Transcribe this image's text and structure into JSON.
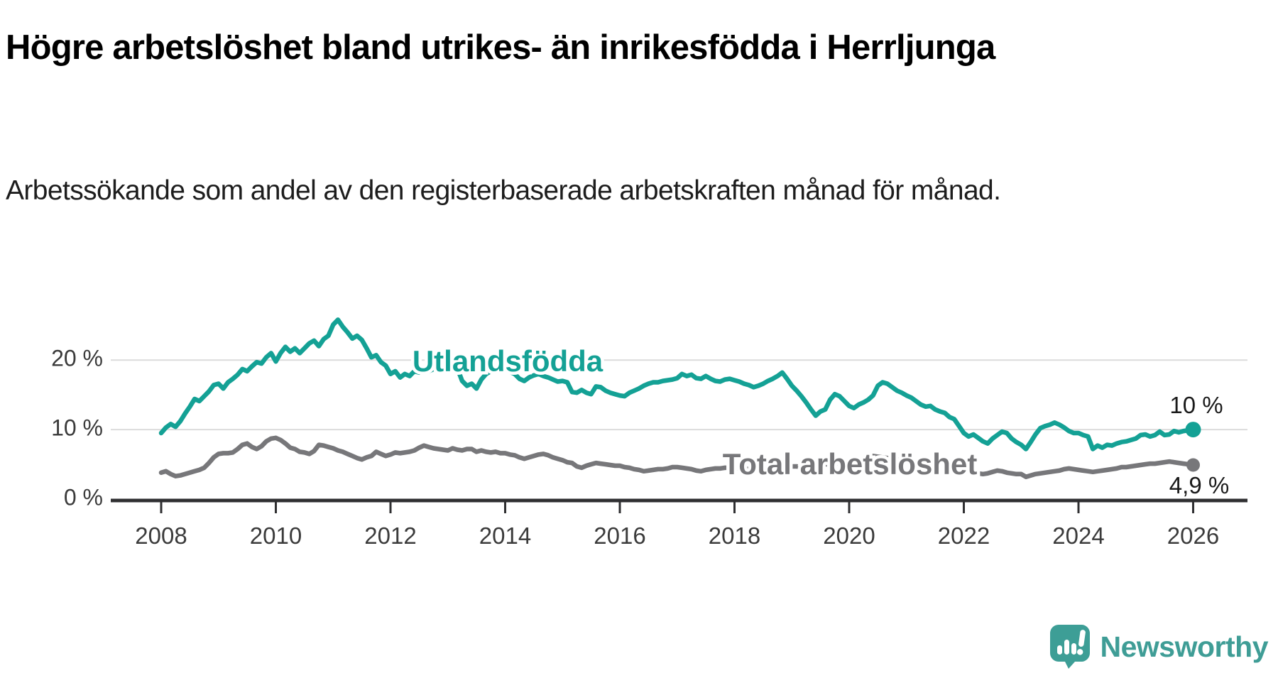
{
  "title": "Högre arbetslöshet bland utrikes- än inrikesfödda i Herrljunga",
  "subtitle": "Arbetssökande som andel av den registerbaserade arbetskraften månad för månad.",
  "branding": {
    "logo_text": "Newsworthy",
    "logo_color": "#3f9d96",
    "icon_color": "#3d9e96"
  },
  "colors": {
    "foreign_born_line": "#14a195",
    "total_line": "#77777a",
    "grid": "#dcdcdc",
    "axis": "#2f2f31",
    "tick_label": "#3b3b3b",
    "annotation_text": "#1a1a1a"
  },
  "chart_data": {
    "type": "line",
    "title": "",
    "xlabel": "",
    "ylabel": "",
    "x_unit": "month",
    "x_range_decimal_years": [
      2008.0,
      2026.083
    ],
    "ylim": [
      0,
      26.5
    ],
    "grid": "horizontal",
    "y_ticks": [
      {
        "value": 0,
        "label": "0 %"
      },
      {
        "value": 10,
        "label": "10 %"
      },
      {
        "value": 20,
        "label": "20 %"
      }
    ],
    "x_ticks": [
      {
        "year": 2008,
        "label": "2008"
      },
      {
        "year": 2010,
        "label": "2010"
      },
      {
        "year": 2012,
        "label": "2012"
      },
      {
        "year": 2014,
        "label": "2014"
      },
      {
        "year": 2016,
        "label": "2016"
      },
      {
        "year": 2018,
        "label": "2018"
      },
      {
        "year": 2020,
        "label": "2020"
      },
      {
        "year": 2022,
        "label": "2022"
      },
      {
        "year": 2024,
        "label": "2024"
      },
      {
        "year": 2026,
        "label": "2026"
      }
    ],
    "series": [
      {
        "name": "Utlandsfödda",
        "color": "#14a195",
        "start": "2008-01",
        "end_label": "10 %",
        "values": [
          9.5,
          10.3,
          10.8,
          10.4,
          11.2,
          12.3,
          13.3,
          14.4,
          14.1,
          14.8,
          15.5,
          16.4,
          16.6,
          15.9,
          16.8,
          17.3,
          17.9,
          18.7,
          18.4,
          19.1,
          19.7,
          19.5,
          20.4,
          21.0,
          19.8,
          21.0,
          21.9,
          21.2,
          21.7,
          21.0,
          21.7,
          22.4,
          22.8,
          22.0,
          23.0,
          23.5,
          25.1,
          25.8,
          24.8,
          24.0,
          23.1,
          23.5,
          22.9,
          21.7,
          20.4,
          20.7,
          19.7,
          19.2,
          18.0,
          18.4,
          17.5,
          18.0,
          17.7,
          18.4,
          18.2,
          18.7,
          18.4,
          18.7,
          19.4,
          19.2,
          19.0,
          19.3,
          18.8,
          17.0,
          16.3,
          16.6,
          15.9,
          17.2,
          18.0,
          18.4,
          18.8,
          18.5,
          18.6,
          18.3,
          18.0,
          17.3,
          17.0,
          17.5,
          17.8,
          18.0,
          17.7,
          17.5,
          17.2,
          16.9,
          17.0,
          16.8,
          15.4,
          15.3,
          15.7,
          15.3,
          15.1,
          16.2,
          16.1,
          15.6,
          15.3,
          15.1,
          14.9,
          14.8,
          15.3,
          15.6,
          15.9,
          16.3,
          16.6,
          16.8,
          16.8,
          17.0,
          17.1,
          17.2,
          17.4,
          18.0,
          17.7,
          17.9,
          17.4,
          17.3,
          17.7,
          17.3,
          17.0,
          16.9,
          17.2,
          17.3,
          17.1,
          16.9,
          16.6,
          16.4,
          16.1,
          16.3,
          16.6,
          17.0,
          17.3,
          17.7,
          18.2,
          17.3,
          16.3,
          15.6,
          14.8,
          13.9,
          12.9,
          12.0,
          12.6,
          12.9,
          14.3,
          15.1,
          14.8,
          14.1,
          13.4,
          13.1,
          13.6,
          13.9,
          14.3,
          14.9,
          16.3,
          16.8,
          16.6,
          16.1,
          15.6,
          15.3,
          14.9,
          14.6,
          14.1,
          13.6,
          13.3,
          13.4,
          12.9,
          12.6,
          12.4,
          11.8,
          11.5,
          10.5,
          9.5,
          9.0,
          9.3,
          8.8,
          8.3,
          8.0,
          8.7,
          9.2,
          9.7,
          9.5,
          8.7,
          8.2,
          7.8,
          7.2,
          8.2,
          9.3,
          10.2,
          10.5,
          10.7,
          11.0,
          10.7,
          10.3,
          9.8,
          9.5,
          9.5,
          9.2,
          9.0,
          7.2,
          7.7,
          7.4,
          7.8,
          7.7,
          8.0,
          8.2,
          8.3,
          8.5,
          8.7,
          9.2,
          9.3,
          9.0,
          9.2,
          9.7,
          9.2,
          9.3,
          9.8,
          9.6,
          9.8,
          9.9,
          10.0
        ]
      },
      {
        "name": "Total arbetslöshet",
        "color": "#77777a",
        "start": "2008-01",
        "end_label": "4,9 %",
        "values": [
          3.8,
          4.0,
          3.6,
          3.3,
          3.4,
          3.6,
          3.8,
          4.0,
          4.2,
          4.5,
          5.2,
          6.0,
          6.5,
          6.6,
          6.6,
          6.7,
          7.2,
          7.8,
          8.0,
          7.5,
          7.2,
          7.6,
          8.3,
          8.7,
          8.8,
          8.5,
          8.0,
          7.4,
          7.2,
          6.8,
          6.7,
          6.5,
          6.9,
          7.8,
          7.7,
          7.5,
          7.3,
          7.0,
          6.8,
          6.5,
          6.2,
          5.9,
          5.7,
          6.0,
          6.2,
          6.8,
          6.5,
          6.2,
          6.4,
          6.7,
          6.6,
          6.7,
          6.8,
          7.0,
          7.4,
          7.7,
          7.5,
          7.3,
          7.2,
          7.1,
          7.0,
          7.3,
          7.1,
          7.0,
          7.2,
          7.2,
          6.8,
          7.0,
          6.8,
          6.7,
          6.8,
          6.6,
          6.6,
          6.4,
          6.3,
          6.0,
          5.8,
          6.0,
          6.2,
          6.4,
          6.5,
          6.3,
          6.0,
          5.8,
          5.6,
          5.3,
          5.2,
          4.7,
          4.5,
          4.8,
          5.0,
          5.2,
          5.1,
          5.0,
          4.9,
          4.8,
          4.8,
          4.6,
          4.5,
          4.3,
          4.2,
          4.0,
          4.1,
          4.2,
          4.3,
          4.3,
          4.4,
          4.6,
          4.6,
          4.5,
          4.4,
          4.3,
          4.1,
          4.0,
          4.2,
          4.3,
          4.4,
          4.4,
          4.5,
          4.5,
          4.5,
          4.4,
          4.4,
          4.3,
          4.3,
          4.2,
          4.3,
          4.4,
          4.4,
          4.5,
          4.6,
          4.6,
          4.7,
          4.7,
          4.6,
          4.6,
          4.7,
          4.8,
          4.9,
          5.0,
          5.0,
          5.1,
          5.2,
          5.2,
          5.3,
          5.4,
          5.6,
          5.9,
          6.1,
          6.2,
          6.1,
          6.0,
          5.9,
          5.8,
          5.7,
          5.6,
          5.6,
          5.5,
          5.4,
          5.2,
          5.1,
          5.0,
          4.9,
          4.8,
          4.7,
          4.6,
          4.5,
          4.3,
          4.2,
          4.0,
          3.8,
          3.7,
          3.6,
          3.7,
          3.9,
          4.1,
          4.0,
          3.8,
          3.7,
          3.6,
          3.6,
          3.2,
          3.4,
          3.6,
          3.7,
          3.8,
          3.9,
          4.0,
          4.1,
          4.3,
          4.4,
          4.3,
          4.2,
          4.1,
          4.0,
          3.9,
          4.0,
          4.1,
          4.2,
          4.3,
          4.4,
          4.6,
          4.6,
          4.7,
          4.8,
          4.9,
          5.0,
          5.1,
          5.1,
          5.2,
          5.3,
          5.4,
          5.3,
          5.2,
          5.1,
          5.0,
          4.9
        ]
      }
    ],
    "legend_position": "inline-labels"
  }
}
